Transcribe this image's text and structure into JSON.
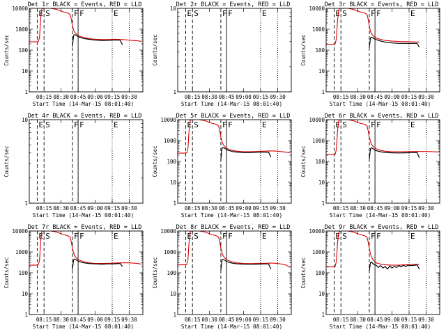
{
  "xaxis": {
    "title": "Start Time (14-Mar-15 08:01:40)",
    "ticks": [
      {
        "t": 13,
        "label": "08:15"
      },
      {
        "t": 28,
        "label": "08:30"
      },
      {
        "t": 43,
        "label": "08:45"
      },
      {
        "t": 58,
        "label": "09:00"
      },
      {
        "t": 73,
        "label": "09:15"
      },
      {
        "t": 88,
        "label": "09:30"
      }
    ],
    "range": [
      0,
      100
    ]
  },
  "yaxis": {
    "title": "Counts/sec",
    "ticks": [
      {
        "v": 1,
        "label": "1"
      },
      {
        "v": 10,
        "label": "10"
      },
      {
        "v": 100,
        "label": "100"
      },
      {
        "v": 1000,
        "label": "1000"
      },
      {
        "v": 10000,
        "label": "10000"
      }
    ],
    "range_active": [
      1,
      10000
    ],
    "range_empty": [
      1,
      10
    ]
  },
  "colors": {
    "events": "#000000",
    "lld": "#dd0000"
  },
  "marker_labels": {
    "E": "E",
    "S": "S",
    "F": "F"
  },
  "chart_data": [
    {
      "type": "line",
      "title": "Det 1r BLACK = Events, RED = LLD",
      "has_data": true,
      "ylog": true,
      "markers": [
        {
          "t": 7,
          "style": "dashed",
          "label": "E"
        },
        {
          "t": 13,
          "style": "dashed",
          "label": "S"
        },
        {
          "t": 38,
          "style": "dashed",
          "label": "F"
        },
        {
          "t": 43,
          "style": "solid",
          "label": "F"
        },
        {
          "t": 73,
          "style": "dotted",
          "label": "E"
        },
        {
          "t": 88,
          "style": "dotted",
          "label": ""
        }
      ],
      "series": [
        {
          "name": "LLD",
          "color": "#dd0000",
          "x": [
            0,
            6,
            8,
            9,
            10,
            11,
            12,
            13,
            14,
            16,
            19,
            24,
            29,
            34,
            36,
            37,
            38,
            39,
            40,
            42,
            44,
            48,
            52,
            58,
            64,
            70,
            75,
            82,
            88,
            95,
            99
          ],
          "y": [
            250,
            250,
            255,
            400,
            3000,
            9000,
            12000,
            13000,
            13000,
            12000,
            11000,
            9000,
            7000,
            6000,
            5000,
            3000,
            1500,
            900,
            700,
            550,
            470,
            400,
            360,
            330,
            320,
            320,
            330,
            320,
            300,
            280,
            260
          ]
        },
        {
          "name": "Events",
          "color": "#000000",
          "x": [
            38,
            39,
            40,
            42,
            44,
            48,
            52,
            58,
            64,
            70,
            75,
            80,
            82
          ],
          "y": [
            150,
            500,
            560,
            480,
            420,
            360,
            330,
            300,
            290,
            295,
            300,
            300,
            180
          ]
        }
      ]
    },
    {
      "type": "line",
      "title": "Det 2r BLACK = Events, RED = LLD",
      "has_data": false,
      "ylog": true,
      "markers": [
        {
          "t": 7,
          "style": "dashed",
          "label": "E"
        },
        {
          "t": 13,
          "style": "dashed",
          "label": "S"
        },
        {
          "t": 38,
          "style": "dashed",
          "label": "F"
        },
        {
          "t": 43,
          "style": "solid",
          "label": "F"
        },
        {
          "t": 73,
          "style": "dotted",
          "label": "E"
        },
        {
          "t": 88,
          "style": "dotted",
          "label": ""
        }
      ],
      "series": []
    },
    {
      "type": "line",
      "title": "Det 3r BLACK = Events, RED = LLD",
      "has_data": true,
      "ylog": true,
      "markers": [
        {
          "t": 7,
          "style": "dashed",
          "label": "E"
        },
        {
          "t": 13,
          "style": "dashed",
          "label": "S"
        },
        {
          "t": 38,
          "style": "dashed",
          "label": "F"
        },
        {
          "t": 43,
          "style": "solid",
          "label": "F"
        },
        {
          "t": 73,
          "style": "dotted",
          "label": "E"
        },
        {
          "t": 88,
          "style": "dotted",
          "label": ""
        }
      ],
      "series": [
        {
          "name": "LLD",
          "color": "#dd0000",
          "x": [
            0,
            6,
            8,
            9,
            10,
            11,
            12,
            13,
            14,
            16,
            19,
            24,
            29,
            34,
            36,
            37,
            38,
            39,
            40,
            42,
            44,
            48,
            52,
            58,
            64,
            70,
            75,
            82
          ],
          "y": [
            190,
            190,
            200,
            350,
            2500,
            8000,
            12000,
            13000,
            13000,
            12000,
            11000,
            9000,
            7000,
            6000,
            5000,
            3000,
            1500,
            800,
            600,
            450,
            380,
            320,
            290,
            270,
            260,
            255,
            250,
            240
          ]
        },
        {
          "name": "Events",
          "color": "#000000",
          "x": [
            38,
            39,
            40,
            42,
            44,
            48,
            52,
            58,
            64,
            70,
            75,
            80,
            82
          ],
          "y": [
            130,
            380,
            420,
            360,
            320,
            270,
            240,
            220,
            210,
            210,
            210,
            210,
            140
          ]
        }
      ]
    },
    {
      "type": "line",
      "title": "Det 4r BLACK = Events, RED = LLD",
      "has_data": false,
      "ylog": true,
      "markers": [
        {
          "t": 7,
          "style": "dashed",
          "label": "E"
        },
        {
          "t": 13,
          "style": "dashed",
          "label": "S"
        },
        {
          "t": 38,
          "style": "dashed",
          "label": "F"
        },
        {
          "t": 43,
          "style": "solid",
          "label": "F"
        },
        {
          "t": 73,
          "style": "dotted",
          "label": "E"
        },
        {
          "t": 88,
          "style": "dotted",
          "label": ""
        }
      ],
      "series": []
    },
    {
      "type": "line",
      "title": "Det 5r BLACK = Events, RED = LLD",
      "has_data": true,
      "ylog": true,
      "markers": [
        {
          "t": 7,
          "style": "dashed",
          "label": "E"
        },
        {
          "t": 13,
          "style": "dashed",
          "label": "S"
        },
        {
          "t": 38,
          "style": "dashed",
          "label": "F"
        },
        {
          "t": 43,
          "style": "solid",
          "label": "F"
        },
        {
          "t": 73,
          "style": "dotted",
          "label": "E"
        },
        {
          "t": 88,
          "style": "dotted",
          "label": ""
        }
      ],
      "series": [
        {
          "name": "LLD",
          "color": "#dd0000",
          "x": [
            0,
            6,
            8,
            9,
            10,
            11,
            12,
            13,
            14,
            16,
            19,
            24,
            29,
            34,
            36,
            37,
            38,
            39,
            40,
            42,
            44,
            48,
            52,
            58,
            64,
            70,
            75,
            82,
            88,
            95,
            99
          ],
          "y": [
            250,
            250,
            260,
            420,
            3000,
            9000,
            12000,
            13000,
            13000,
            12000,
            11000,
            9000,
            7000,
            6000,
            5000,
            3000,
            1500,
            900,
            650,
            480,
            400,
            340,
            310,
            290,
            290,
            300,
            310,
            320,
            310,
            280,
            260
          ]
        },
        {
          "name": "Events",
          "color": "#000000",
          "x": [
            38,
            39,
            40,
            42,
            44,
            48,
            52,
            58,
            64,
            70,
            75,
            80,
            82
          ],
          "y": [
            120,
            420,
            470,
            400,
            350,
            300,
            280,
            270,
            270,
            275,
            280,
            280,
            160
          ]
        }
      ]
    },
    {
      "type": "line",
      "title": "Det 6r BLACK = Events, RED = LLD",
      "has_data": true,
      "ylog": true,
      "markers": [
        {
          "t": 7,
          "style": "dashed",
          "label": "E"
        },
        {
          "t": 13,
          "style": "dashed",
          "label": "S"
        },
        {
          "t": 38,
          "style": "dashed",
          "label": "F"
        },
        {
          "t": 43,
          "style": "solid",
          "label": "F"
        },
        {
          "t": 73,
          "style": "dotted",
          "label": "E"
        },
        {
          "t": 88,
          "style": "dotted",
          "label": ""
        }
      ],
      "series": [
        {
          "name": "LLD",
          "color": "#dd0000",
          "x": [
            0,
            6,
            8,
            9,
            10,
            11,
            12,
            13,
            14,
            16,
            19,
            24,
            29,
            34,
            36,
            37,
            38,
            39,
            40,
            42,
            44,
            48,
            52,
            58,
            64,
            70,
            75,
            82,
            88,
            95,
            99
          ],
          "y": [
            210,
            210,
            220,
            380,
            2800,
            8500,
            12000,
            13000,
            13000,
            12000,
            11000,
            9000,
            7000,
            6000,
            5000,
            3000,
            1500,
            900,
            650,
            480,
            400,
            340,
            310,
            290,
            290,
            295,
            300,
            300,
            300,
            290,
            280
          ]
        },
        {
          "name": "Events",
          "color": "#000000",
          "x": [
            38,
            39,
            40,
            42,
            44,
            48,
            52,
            58,
            64,
            70,
            75,
            80,
            82
          ],
          "y": [
            130,
            400,
            450,
            380,
            330,
            290,
            270,
            260,
            255,
            260,
            265,
            270,
            150
          ]
        }
      ]
    },
    {
      "type": "line",
      "title": "Det 7r BLACK = Events, RED = LLD",
      "has_data": true,
      "ylog": true,
      "markers": [
        {
          "t": 7,
          "style": "dashed",
          "label": "E"
        },
        {
          "t": 13,
          "style": "dashed",
          "label": "S"
        },
        {
          "t": 38,
          "style": "dashed",
          "label": "F"
        },
        {
          "t": 43,
          "style": "solid",
          "label": "F"
        },
        {
          "t": 73,
          "style": "dotted",
          "label": "E"
        },
        {
          "t": 88,
          "style": "dotted",
          "label": ""
        }
      ],
      "series": [
        {
          "name": "LLD",
          "color": "#dd0000",
          "x": [
            0,
            6,
            8,
            9,
            10,
            11,
            12,
            13,
            14,
            16,
            19,
            24,
            29,
            34,
            36,
            37,
            38,
            39,
            40,
            42,
            44,
            48,
            52,
            58,
            64,
            70,
            75,
            82,
            88,
            95,
            99
          ],
          "y": [
            230,
            230,
            240,
            400,
            2900,
            9000,
            12000,
            13000,
            13000,
            12000,
            11000,
            9000,
            7000,
            6000,
            5000,
            3000,
            1500,
            900,
            650,
            480,
            400,
            340,
            300,
            280,
            280,
            285,
            290,
            300,
            300,
            280,
            260
          ]
        },
        {
          "name": "Events",
          "color": "#000000",
          "x": [
            38,
            39,
            40,
            42,
            44,
            48,
            52,
            58,
            64,
            70,
            75,
            80,
            82
          ],
          "y": [
            140,
            420,
            460,
            390,
            340,
            300,
            280,
            265,
            260,
            265,
            270,
            280,
            200
          ]
        }
      ]
    },
    {
      "type": "line",
      "title": "Det 8r BLACK = Events, RED = LLD",
      "has_data": true,
      "ylog": true,
      "markers": [
        {
          "t": 7,
          "style": "dashed",
          "label": "E"
        },
        {
          "t": 13,
          "style": "dashed",
          "label": "S"
        },
        {
          "t": 38,
          "style": "dashed",
          "label": "F"
        },
        {
          "t": 43,
          "style": "solid",
          "label": "F"
        },
        {
          "t": 73,
          "style": "dotted",
          "label": "E"
        },
        {
          "t": 88,
          "style": "dotted",
          "label": ""
        }
      ],
      "series": [
        {
          "name": "LLD",
          "color": "#dd0000",
          "x": [
            0,
            6,
            8,
            9,
            10,
            11,
            12,
            13,
            14,
            16,
            19,
            24,
            29,
            34,
            36,
            37,
            38,
            39,
            40,
            42,
            44,
            48,
            52,
            58,
            64,
            70,
            75,
            82,
            88,
            95,
            99
          ],
          "y": [
            240,
            240,
            250,
            420,
            3000,
            9000,
            12000,
            13000,
            13000,
            12000,
            11000,
            9000,
            7000,
            6000,
            5000,
            3000,
            1500,
            900,
            650,
            480,
            400,
            330,
            300,
            280,
            275,
            280,
            285,
            290,
            280,
            240,
            180
          ]
        },
        {
          "name": "Events",
          "color": "#000000",
          "x": [
            38,
            39,
            40,
            42,
            44,
            48,
            52,
            58,
            64,
            70,
            75,
            80,
            82
          ],
          "y": [
            130,
            400,
            440,
            380,
            330,
            290,
            270,
            260,
            255,
            260,
            265,
            265,
            150
          ]
        }
      ]
    },
    {
      "type": "line",
      "title": "Det 9r BLACK = Events, RED = LLD",
      "has_data": true,
      "ylog": true,
      "markers": [
        {
          "t": 7,
          "style": "dashed",
          "label": "E"
        },
        {
          "t": 13,
          "style": "dashed",
          "label": "S"
        },
        {
          "t": 38,
          "style": "dashed",
          "label": "F"
        },
        {
          "t": 43,
          "style": "solid",
          "label": "F"
        },
        {
          "t": 73,
          "style": "dotted",
          "label": "E"
        },
        {
          "t": 88,
          "style": "dotted",
          "label": ""
        }
      ],
      "series": [
        {
          "name": "LLD",
          "color": "#dd0000",
          "x": [
            0,
            6,
            8,
            9,
            10,
            11,
            12,
            13,
            14,
            16,
            19,
            24,
            29,
            34,
            36,
            37,
            38,
            39,
            40,
            42,
            44,
            48,
            52,
            58,
            64,
            70,
            75,
            82
          ],
          "y": [
            190,
            190,
            200,
            360,
            2500,
            8000,
            12000,
            13000,
            13000,
            12000,
            11000,
            9000,
            7000,
            6000,
            5000,
            3000,
            1500,
            800,
            550,
            380,
            300,
            260,
            240,
            230,
            230,
            240,
            250,
            250
          ]
        },
        {
          "name": "Events",
          "color": "#000000",
          "x": [
            38,
            39,
            40,
            42,
            44,
            46,
            48,
            50,
            52,
            54,
            56,
            58,
            60,
            62,
            64,
            66,
            68,
            70,
            72,
            75,
            78,
            80,
            82
          ],
          "y": [
            120,
            300,
            320,
            250,
            230,
            180,
            220,
            170,
            200,
            150,
            210,
            170,
            200,
            180,
            220,
            190,
            230,
            200,
            230,
            220,
            230,
            240,
            150
          ]
        }
      ]
    }
  ]
}
